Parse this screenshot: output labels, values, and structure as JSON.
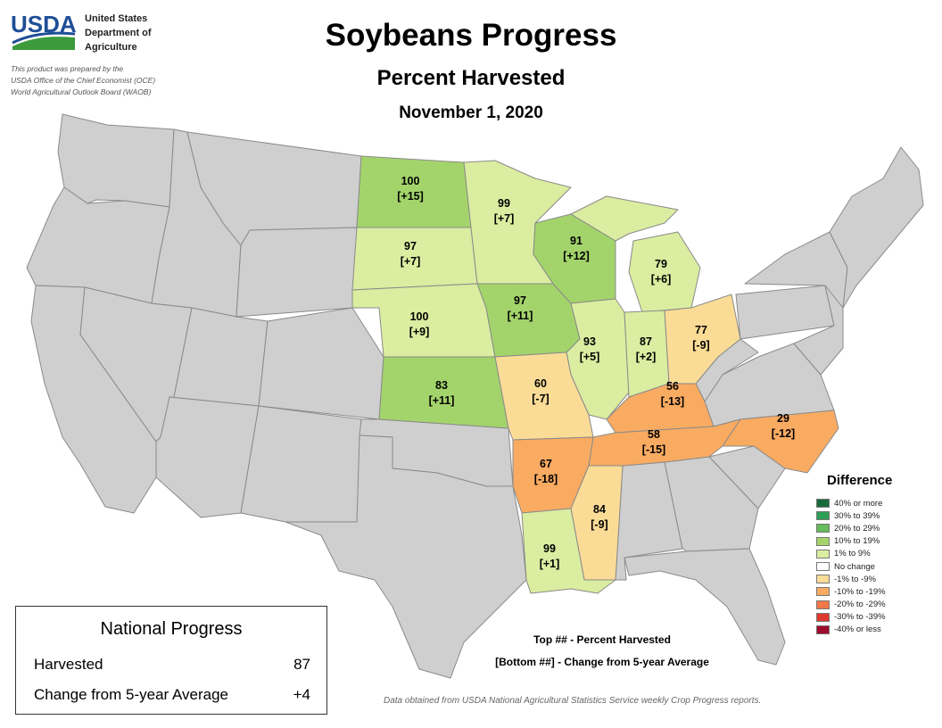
{
  "header": {
    "agency_abbrev": "USDA",
    "agency_lines": [
      "United States",
      "Department of",
      "Agriculture"
    ],
    "prepared_lines": [
      "This product was prepared by the",
      "USDA Office of the Chief Economist (OCE)",
      "World Agricultural Outlook Board (WAOB)"
    ],
    "title": "Soybeans Progress",
    "subtitle": "Percent Harvested",
    "date": "November 1, 2020"
  },
  "colors": {
    "no_data": "#cfcfcf",
    "usda_blue": "#1f4e96",
    "usda_green": "#3c9a3c"
  },
  "states": {
    "ND": {
      "pct": "100",
      "change": "[+15]",
      "color": "#a3d46b"
    },
    "MN": {
      "pct": "99",
      "change": "[+7]",
      "color": "#dbeda0"
    },
    "SD": {
      "pct": "97",
      "change": "[+7]",
      "color": "#dbeda0"
    },
    "WI": {
      "pct": "91",
      "change": "[+12]",
      "color": "#a3d46b"
    },
    "MI": {
      "pct": "79",
      "change": "[+6]",
      "color": "#dbeda0"
    },
    "NE": {
      "pct": "100",
      "change": "[+9]",
      "color": "#dbeda0"
    },
    "IA": {
      "pct": "97",
      "change": "[+11]",
      "color": "#a3d46b"
    },
    "IL": {
      "pct": "93",
      "change": "[+5]",
      "color": "#dbeda0"
    },
    "IN": {
      "pct": "87",
      "change": "[+2]",
      "color": "#dbeda0"
    },
    "OH": {
      "pct": "77",
      "change": "[-9]",
      "color": "#fbdc97"
    },
    "KS": {
      "pct": "83",
      "change": "[+11]",
      "color": "#a3d46b"
    },
    "MO": {
      "pct": "60",
      "change": "[-7]",
      "color": "#fbdc97"
    },
    "KY": {
      "pct": "56",
      "change": "[-13]",
      "color": "#f9ab62"
    },
    "TN": {
      "pct": "58",
      "change": "[-15]",
      "color": "#f9ab62"
    },
    "NC": {
      "pct": "29",
      "change": "[-12]",
      "color": "#f9ab62"
    },
    "AR": {
      "pct": "67",
      "change": "[-18]",
      "color": "#f9ab62"
    },
    "MS": {
      "pct": "84",
      "change": "[-9]",
      "color": "#fbdc97"
    },
    "LA": {
      "pct": "99",
      "change": "[+1]",
      "color": "#dbeda0"
    }
  },
  "legend": {
    "title": "Difference",
    "items": [
      {
        "label": "40% or more",
        "color": "#1a6b3a"
      },
      {
        "label": "30% to 39%",
        "color": "#2e9e55"
      },
      {
        "label": "20% to 29%",
        "color": "#66bb5a"
      },
      {
        "label": "10% to 19%",
        "color": "#a3d46b"
      },
      {
        "label": "1% to 9%",
        "color": "#dbeda0"
      },
      {
        "label": "No change",
        "color": "#ffffff"
      },
      {
        "label": "-1% to -9%",
        "color": "#fbdc97"
      },
      {
        "label": "-10% to -19%",
        "color": "#f9ab62"
      },
      {
        "label": "-20% to -29%",
        "color": "#f07848"
      },
      {
        "label": "-30% to -39%",
        "color": "#de3a2c"
      },
      {
        "label": "-40% or less",
        "color": "#9e0b2c"
      }
    ]
  },
  "national": {
    "title": "National Progress",
    "harvested_label": "Harvested",
    "harvested_value": "87",
    "change_label": "Change from 5-year Average",
    "change_value": "+4"
  },
  "notes": {
    "top": "Top ## - Percent Harvested",
    "bottom": "[Bottom ##] - Change from 5-year Average",
    "source": "Data obtained from USDA National Agricultural Statistics Service weekly Crop Progress reports."
  }
}
